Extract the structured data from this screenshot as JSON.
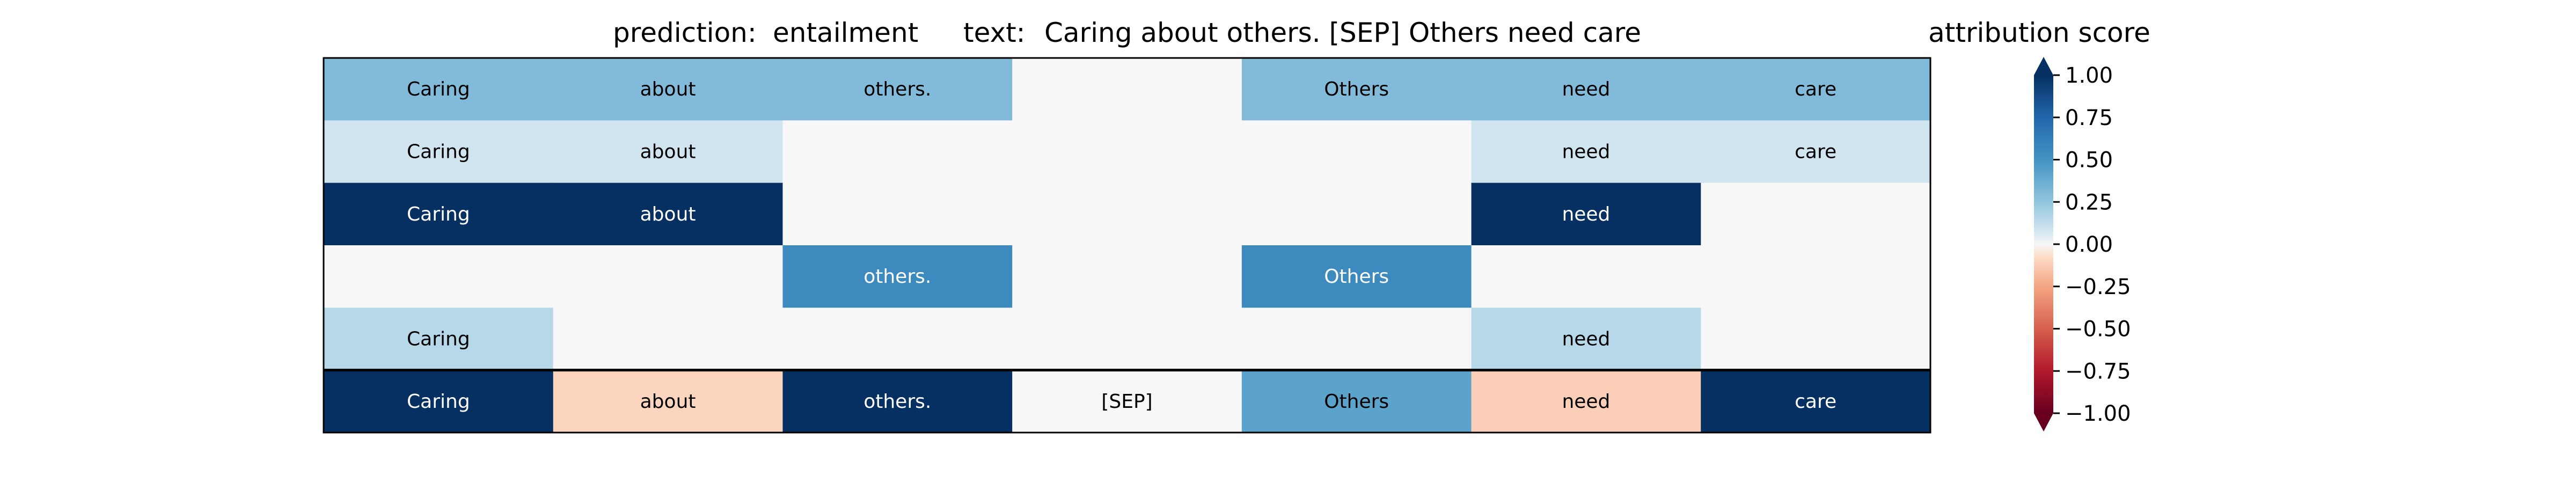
{
  "header": {
    "prediction_label": "prediction:",
    "prediction_value": "entailment",
    "text_label": "text:",
    "text_value": "Caring about others. [SEP] Others need care"
  },
  "colorbar": {
    "title": "attribution score",
    "ticks": [
      "1.00",
      "0.75",
      "0.50",
      "0.25",
      "0.00",
      "−0.25",
      "−0.50",
      "−0.75",
      "−1.00"
    ],
    "tick_values": [
      1.0,
      0.75,
      0.5,
      0.25,
      0.0,
      -0.25,
      -0.5,
      -0.75,
      -1.0
    ],
    "range": [
      -1,
      1
    ],
    "colormap": "RdBu",
    "extend": "both"
  },
  "chart_data": {
    "type": "heatmap",
    "tokens": [
      "Caring",
      "about",
      "others.",
      "[SEP]",
      "Others",
      "need",
      "care"
    ],
    "rows": [
      {
        "values": [
          0.3,
          0.3,
          0.3,
          0.0,
          0.3,
          0.3,
          0.3
        ],
        "labels": [
          "Caring",
          "about",
          "others.",
          "",
          "Others",
          "need",
          "care"
        ]
      },
      {
        "values": [
          0.08,
          0.08,
          0.0,
          0.0,
          0.0,
          0.08,
          0.08
        ],
        "labels": [
          "Caring",
          "about",
          "",
          "",
          "",
          "need",
          "care"
        ]
      },
      {
        "values": [
          1.0,
          1.0,
          0.0,
          0.0,
          0.0,
          1.0,
          0.0
        ],
        "labels": [
          "Caring",
          "about",
          "",
          "",
          "",
          "need",
          ""
        ]
      },
      {
        "values": [
          0.0,
          0.0,
          0.55,
          0.0,
          0.55,
          0.0,
          0.0
        ],
        "labels": [
          "",
          "",
          "others.",
          "",
          "Others",
          "",
          ""
        ]
      },
      {
        "values": [
          0.15,
          0.0,
          0.0,
          0.0,
          0.0,
          0.15,
          0.0
        ],
        "labels": [
          "Caring",
          "",
          "",
          "",
          "",
          "need",
          ""
        ]
      },
      {
        "values": [
          1.0,
          -0.1,
          1.0,
          0.0,
          0.42,
          -0.12,
          1.0
        ],
        "labels": [
          "Caring",
          "about",
          "others.",
          "[SEP]",
          "Others",
          "need",
          "care"
        ]
      }
    ],
    "separator_after_row": 5
  }
}
